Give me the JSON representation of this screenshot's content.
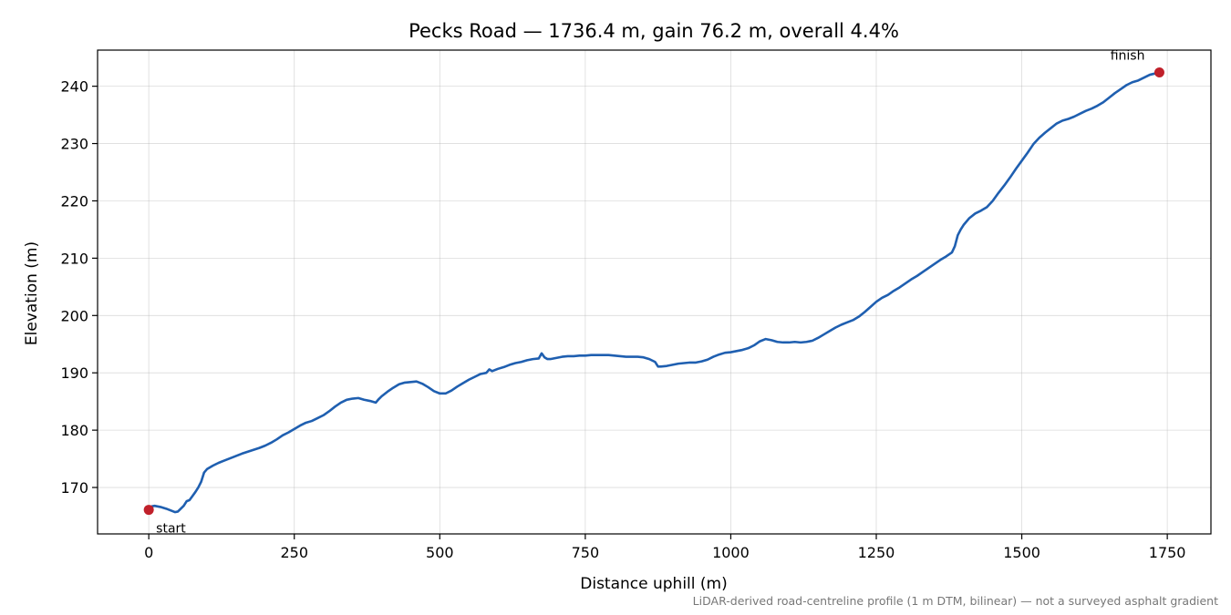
{
  "chart_data": {
    "type": "line",
    "title": "Pecks Road — 1736.4 m, gain 76.2 m, overall 4.4%",
    "xlabel": "Distance uphill (m)",
    "ylabel": "Elevation (m)",
    "xlim": [
      -88,
      1825
    ],
    "ylim": [
      161.9,
      246.3
    ],
    "xticks": [
      0,
      250,
      500,
      750,
      1000,
      1250,
      1500,
      1750
    ],
    "yticks": [
      170,
      180,
      190,
      200,
      210,
      220,
      230,
      240
    ],
    "grid": true,
    "legend": "none",
    "line_color": "#1f5fb0",
    "marker_color": "#c0202a",
    "series": [
      {
        "x": [
          0,
          5,
          10,
          20,
          30,
          40,
          45,
          50,
          55,
          60,
          65,
          70,
          75,
          80,
          85,
          90,
          95,
          100,
          105,
          110,
          120,
          130,
          140,
          150,
          160,
          175,
          190,
          200,
          210,
          220,
          230,
          240,
          250,
          260,
          270,
          280,
          290,
          300,
          310,
          320,
          330,
          340,
          350,
          360,
          370,
          380,
          390,
          395,
          400,
          410,
          420,
          430,
          440,
          450,
          460,
          470,
          480,
          490,
          500,
          510,
          520,
          530,
          540,
          550,
          560,
          570,
          580,
          585,
          590,
          595,
          600,
          610,
          620,
          630,
          640,
          650,
          660,
          670,
          675,
          680,
          685,
          690,
          700,
          710,
          720,
          730,
          740,
          750,
          760,
          770,
          780,
          790,
          800,
          810,
          820,
          830,
          840,
          850,
          860,
          870,
          875,
          880,
          890,
          900,
          910,
          920,
          930,
          940,
          950,
          960,
          970,
          980,
          990,
          1000,
          1010,
          1020,
          1030,
          1040,
          1050,
          1060,
          1070,
          1080,
          1090,
          1100,
          1110,
          1120,
          1130,
          1140,
          1150,
          1160,
          1170,
          1180,
          1190,
          1200,
          1210,
          1220,
          1230,
          1240,
          1250,
          1260,
          1270,
          1280,
          1290,
          1300,
          1310,
          1320,
          1330,
          1340,
          1350,
          1360,
          1370,
          1380,
          1385,
          1390,
          1395,
          1400,
          1410,
          1420,
          1430,
          1440,
          1450,
          1460,
          1470,
          1480,
          1490,
          1500,
          1510,
          1520,
          1530,
          1540,
          1550,
          1560,
          1570,
          1580,
          1590,
          1600,
          1610,
          1620,
          1630,
          1640,
          1650,
          1660,
          1670,
          1680,
          1690,
          1700,
          1710,
          1720,
          1736.4
        ],
        "values": [
          166.1,
          166.7,
          166.8,
          166.6,
          166.3,
          165.9,
          165.7,
          165.8,
          166.3,
          166.8,
          167.6,
          167.8,
          168.5,
          169.2,
          170.0,
          171.0,
          172.6,
          173.2,
          173.5,
          173.8,
          174.3,
          174.7,
          175.1,
          175.5,
          175.9,
          176.4,
          176.9,
          177.3,
          177.8,
          178.4,
          179.1,
          179.6,
          180.2,
          180.8,
          181.3,
          181.6,
          182.1,
          182.6,
          183.3,
          184.1,
          184.8,
          185.3,
          185.5,
          185.6,
          185.3,
          185.1,
          184.8,
          185.4,
          185.9,
          186.7,
          187.4,
          188.0,
          188.3,
          188.4,
          188.5,
          188.1,
          187.5,
          186.8,
          186.4,
          186.4,
          186.9,
          187.6,
          188.2,
          188.8,
          189.3,
          189.8,
          190.0,
          190.6,
          190.3,
          190.5,
          190.7,
          191.0,
          191.4,
          191.7,
          191.9,
          192.2,
          192.4,
          192.5,
          193.4,
          192.7,
          192.4,
          192.4,
          192.6,
          192.8,
          192.9,
          192.9,
          193.0,
          193.0,
          193.1,
          193.1,
          193.1,
          193.1,
          193.0,
          192.9,
          192.8,
          192.8,
          192.8,
          192.7,
          192.4,
          191.9,
          191.1,
          191.1,
          191.2,
          191.4,
          191.6,
          191.7,
          191.8,
          191.8,
          192.0,
          192.3,
          192.8,
          193.2,
          193.5,
          193.6,
          193.8,
          194.0,
          194.3,
          194.8,
          195.5,
          195.9,
          195.7,
          195.4,
          195.3,
          195.3,
          195.4,
          195.3,
          195.4,
          195.6,
          196.1,
          196.7,
          197.3,
          197.9,
          198.4,
          198.8,
          199.2,
          199.8,
          200.6,
          201.5,
          202.4,
          203.1,
          203.6,
          204.3,
          204.9,
          205.6,
          206.3,
          206.9,
          207.6,
          208.3,
          209.0,
          209.7,
          210.3,
          211.0,
          212.1,
          214.0,
          215.0,
          215.8,
          217.0,
          217.8,
          218.3,
          218.9,
          220.0,
          221.4,
          222.7,
          224.1,
          225.6,
          227.0,
          228.4,
          229.9,
          231.0,
          231.9,
          232.7,
          233.5,
          234.0,
          234.3,
          234.7,
          235.2,
          235.7,
          236.1,
          236.6,
          237.2,
          238.0,
          238.8,
          239.5,
          240.2,
          240.7,
          241.0,
          241.5,
          242.0,
          242.4
        ]
      }
    ],
    "annotations": [
      {
        "label": "start",
        "x": 0,
        "y": 166.1
      },
      {
        "label": "finish",
        "x": 1736.4,
        "y": 242.4
      }
    ],
    "footnote": "LiDAR-derived road-centreline profile (1 m DTM, bilinear) — not a surveyed asphalt gradient"
  }
}
